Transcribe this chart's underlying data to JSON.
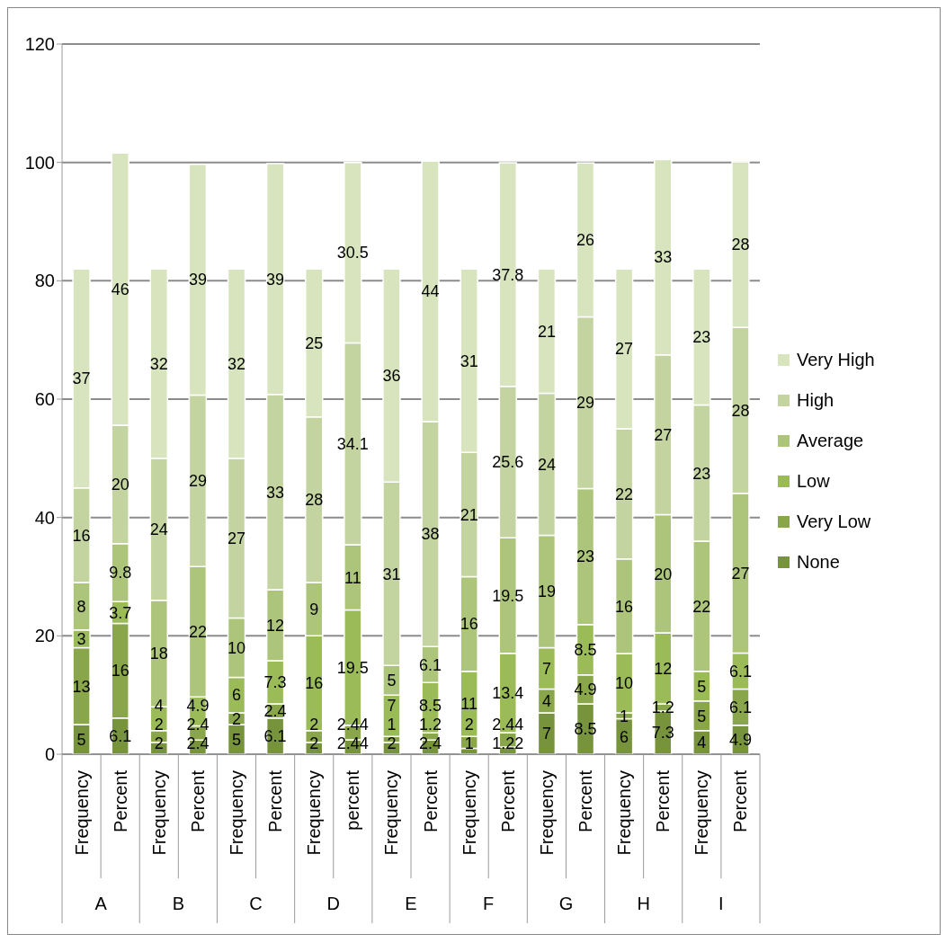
{
  "chart_data": {
    "type": "bar",
    "stacked": true,
    "data_labels": true,
    "grid": "y",
    "legend": "right",
    "categories": [
      "Frequency",
      "Percent",
      "Frequency",
      "Percent",
      "Frequency",
      "Percent",
      "Frequency",
      "percent",
      "Frequency",
      "Percent",
      "Frequency",
      "Percent",
      "Frequency",
      "Percent",
      "Frequency",
      "Percent",
      "Frequency",
      "Percent"
    ],
    "annotations": [
      "A",
      "B",
      "C",
      "D",
      "E",
      "F",
      "G",
      "H",
      "I"
    ],
    "ylim": [
      0,
      120
    ],
    "yticks": [
      0,
      20,
      40,
      60,
      80,
      100,
      120
    ],
    "series": [
      {
        "name": "None",
        "color": "#77933c",
        "values": [
          5,
          6.1,
          2,
          2.4,
          5,
          6.1,
          2,
          2.44,
          2,
          2.4,
          1,
          1.22,
          7,
          8.5,
          6,
          7.3,
          4,
          4.9
        ]
      },
      {
        "name": "Very Low",
        "color": "#8aa64b",
        "values": [
          13,
          16,
          2,
          2.4,
          2,
          2.4,
          2,
          2.44,
          1,
          1.2,
          2,
          2.44,
          4,
          4.9,
          1,
          1.2,
          5,
          6.1
        ]
      },
      {
        "name": "Low",
        "color": "#9bbb59",
        "values": [
          3,
          3.7,
          4,
          4.9,
          6,
          7.3,
          16,
          19.5,
          7,
          8.5,
          11,
          13.4,
          7,
          8.5,
          10,
          12,
          5,
          6.1
        ]
      },
      {
        "name": "Average",
        "color": "#adc57a",
        "values": [
          8,
          9.8,
          18,
          22,
          10,
          12,
          9,
          11,
          5,
          6.1,
          16,
          19.5,
          19,
          23,
          16,
          20,
          22,
          27
        ]
      },
      {
        "name": "High",
        "color": "#c3d4a1",
        "values": [
          16,
          20,
          24,
          29,
          27,
          33,
          28,
          34.1,
          31,
          38,
          21,
          25.6,
          24,
          29,
          22,
          27,
          23,
          28
        ]
      },
      {
        "name": "Very High",
        "color": "#d7e4bd",
        "values": [
          37,
          46,
          32,
          39,
          32,
          39,
          25,
          30.5,
          36,
          44,
          31,
          37.8,
          21,
          26,
          27,
          33,
          23,
          28
        ]
      }
    ]
  }
}
